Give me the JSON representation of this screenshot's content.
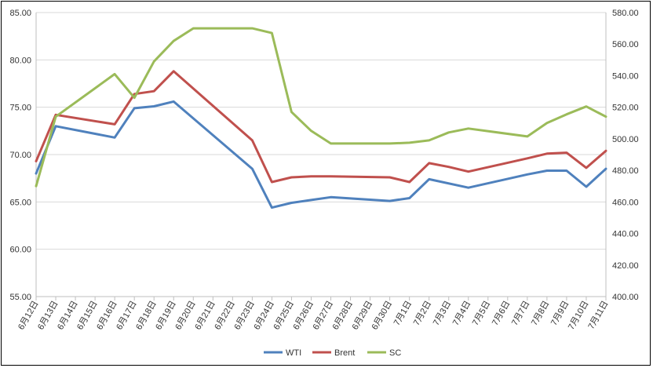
{
  "chart_data": {
    "type": "line",
    "title": "",
    "xlabel": "",
    "ylabel": "",
    "categories": [
      "6月12日",
      "6月13日",
      "6月14日",
      "6月15日",
      "6月16日",
      "6月17日",
      "6月18日",
      "6月19日",
      "6月20日",
      "6月21日",
      "6月22日",
      "6月23日",
      "6月24日",
      "6月25日",
      "6月26日",
      "6月27日",
      "6月28日",
      "6月29日",
      "6月30日",
      "7月1日",
      "7月2日",
      "7月3日",
      "7月4日",
      "7月5日",
      "7月6日",
      "7月7日",
      "7月8日",
      "7月9日",
      "7月10日",
      "7月11日"
    ],
    "ylim": [
      55,
      85
    ],
    "y_ticks": [
      "55.00",
      "60.00",
      "65.00",
      "70.00",
      "75.00",
      "80.00",
      "85.00"
    ],
    "y2lim": [
      400,
      580
    ],
    "y2_ticks": [
      "400.00",
      "420.00",
      "440.00",
      "460.00",
      "480.00",
      "500.00",
      "520.00",
      "540.00",
      "560.00",
      "580.00"
    ],
    "grid": "horizontal",
    "legend": "bottom",
    "series": [
      {
        "name": "WTI",
        "axis": "left",
        "color": "#4f81bd",
        "values": [
          68.0,
          73.0,
          null,
          null,
          71.8,
          74.9,
          75.1,
          75.6,
          null,
          null,
          null,
          68.5,
          64.4,
          64.9,
          65.2,
          65.5,
          null,
          null,
          65.1,
          65.4,
          67.4,
          null,
          66.5,
          null,
          null,
          67.9,
          68.3,
          68.3,
          66.6,
          68.5
        ]
      },
      {
        "name": "Brent",
        "axis": "left",
        "color": "#c0504d",
        "values": [
          69.3,
          74.2,
          null,
          null,
          73.2,
          76.4,
          76.7,
          78.8,
          null,
          null,
          null,
          71.5,
          67.1,
          67.6,
          67.7,
          67.7,
          null,
          null,
          67.6,
          67.1,
          69.1,
          68.7,
          68.2,
          null,
          null,
          69.6,
          70.1,
          70.2,
          68.6,
          70.4
        ]
      },
      {
        "name": "SC",
        "axis": "right",
        "color": "#9bbb59",
        "values": [
          470.0,
          514.0,
          null,
          null,
          541.0,
          526.0,
          549.0,
          562.0,
          570.0,
          570.0,
          570.0,
          570.0,
          567.0,
          517.0,
          505.0,
          497.0,
          497.0,
          497.0,
          497.0,
          497.5,
          499.0,
          504.0,
          506.5,
          null,
          null,
          501.5,
          510.0,
          515.5,
          520.5,
          514.0
        ]
      }
    ]
  }
}
